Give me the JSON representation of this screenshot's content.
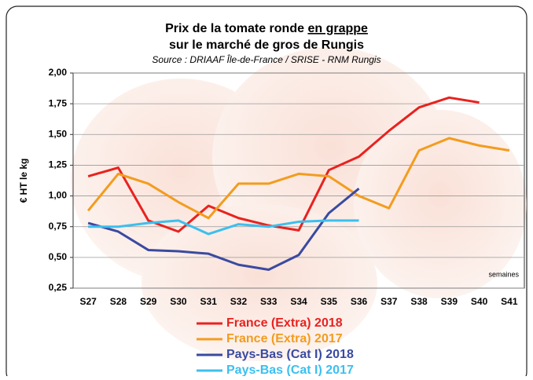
{
  "chart_data": {
    "type": "line",
    "title": "Prix de la tomate ronde ",
    "title_underlined": "en grappe",
    "title_line2": "sur le marché de gros de Rungis",
    "subtitle": "Source : DRIAAF Île-de-France / SRISE - RNM Rungis",
    "ylabel": "€ HT le kg",
    "xlabel": "semaines",
    "categories": [
      "S27",
      "S28",
      "S29",
      "S30",
      "S31",
      "S32",
      "S33",
      "S34",
      "S35",
      "S36",
      "S37",
      "S38",
      "S39",
      "S40",
      "S41"
    ],
    "ylim": [
      0.25,
      2
    ],
    "yticks": [
      {
        "value": 0.25,
        "label": "0,25"
      },
      {
        "value": 0.5,
        "label": "0,50"
      },
      {
        "value": 0.75,
        "label": "0,75"
      },
      {
        "value": 1,
        "label": "1,00"
      },
      {
        "value": 1.25,
        "label": "1,25"
      },
      {
        "value": 1.5,
        "label": "1,50"
      },
      {
        "value": 1.75,
        "label": "1,75"
      },
      {
        "value": 2,
        "label": "2,00"
      }
    ],
    "grid": true,
    "series": [
      {
        "name": "France (Extra) 2018",
        "color": "#e8221f",
        "values": [
          1.16,
          1.23,
          0.8,
          0.71,
          0.92,
          0.82,
          0.76,
          0.72,
          1.21,
          1.32,
          1.53,
          1.72,
          1.8,
          1.76,
          null
        ]
      },
      {
        "name": "France (Extra) 2017",
        "color": "#f39c1e",
        "values": [
          0.88,
          1.18,
          1.1,
          0.95,
          0.82,
          1.1,
          1.1,
          1.18,
          1.16,
          1.0,
          0.9,
          1.37,
          1.47,
          1.41,
          1.37
        ]
      },
      {
        "name": "Pays-Bas (Cat I) 2018",
        "color": "#3a4aa0",
        "values": [
          0.78,
          0.71,
          0.56,
          0.55,
          0.53,
          0.44,
          0.4,
          0.52,
          0.86,
          1.06,
          null,
          null,
          null,
          null,
          null
        ]
      },
      {
        "name": "Pays-Bas (Cat I) 2017",
        "color": "#3cbfef",
        "values": [
          0.75,
          0.75,
          0.78,
          0.8,
          0.69,
          0.77,
          0.75,
          0.79,
          0.8,
          0.8,
          null,
          null,
          null,
          null,
          null
        ]
      }
    ]
  }
}
